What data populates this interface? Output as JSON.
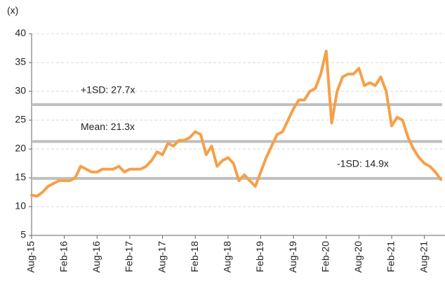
{
  "chart_data": {
    "type": "line",
    "y_unit_label": "(x)",
    "categories": [
      "Aug-15",
      null,
      null,
      null,
      null,
      null,
      "Feb-16",
      null,
      null,
      null,
      null,
      null,
      "Aug-16",
      null,
      null,
      null,
      null,
      null,
      "Feb-17",
      null,
      null,
      null,
      null,
      null,
      "Aug-17",
      null,
      null,
      null,
      null,
      null,
      "Feb-18",
      null,
      null,
      null,
      null,
      null,
      "Aug-18",
      null,
      null,
      null,
      null,
      null,
      "Feb-19",
      null,
      null,
      null,
      null,
      null,
      "Aug-19",
      null,
      null,
      null,
      null,
      null,
      "Feb-20",
      null,
      null,
      null,
      null,
      null,
      "Aug-20",
      null,
      null,
      null,
      null,
      null,
      "Feb-21",
      null,
      null,
      null,
      null,
      null,
      "Aug-21",
      null,
      null,
      null
    ],
    "series": [
      {
        "color": "#f5a04a",
        "values": [
          12,
          11.8,
          12.5,
          13.5,
          14,
          14.5,
          14.5,
          14.5,
          15,
          17,
          16.5,
          16,
          16,
          16.5,
          16.5,
          16.5,
          17,
          16,
          16.5,
          16.5,
          16.5,
          17,
          18,
          19.5,
          19,
          21,
          20.5,
          21.5,
          21.5,
          22,
          23,
          22.5,
          19,
          20.5,
          17,
          18,
          18.5,
          17.5,
          14.5,
          15.5,
          14.5,
          13.5,
          16,
          18.5,
          20.5,
          22.5,
          23,
          25,
          27,
          28.5,
          28.5,
          30,
          30.5,
          33,
          37,
          24.5,
          30,
          32.5,
          33,
          33,
          34,
          31,
          31.5,
          31,
          32.5,
          30,
          24,
          25.5,
          25,
          22,
          20,
          18.5,
          17.5,
          17,
          16,
          14.7
        ]
      }
    ],
    "reference_lines": [
      {
        "label": "+1SD: 27.7x",
        "value": 27.7
      },
      {
        "label": "Mean: 21.3x",
        "value": 21.3
      },
      {
        "label": "-1SD: 14.9x",
        "value": 14.9
      }
    ],
    "reference_color": "#bfbfbf",
    "ylim": [
      5,
      40
    ],
    "yticks": [
      5,
      10,
      15,
      20,
      25,
      30,
      35,
      40
    ],
    "grid": true
  }
}
